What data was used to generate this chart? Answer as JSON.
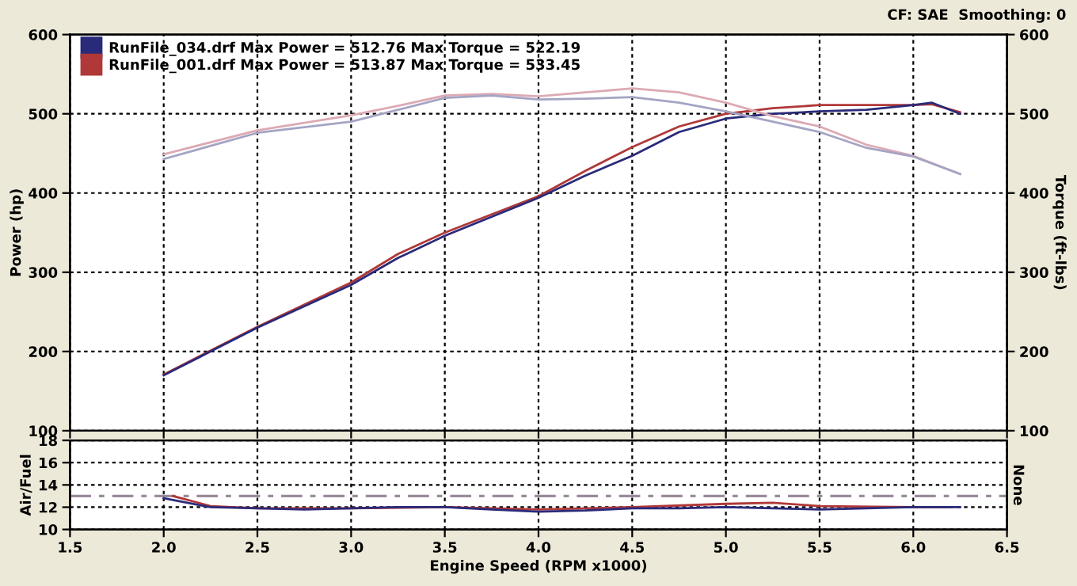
{
  "chart_data": [
    {
      "type": "line",
      "ylabel": "Power (hp)",
      "y2label": "Torque (ft-lbs)",
      "annotations": [
        "CF: SAE  Smoothing: 0"
      ],
      "legend": "top left",
      "grid": true,
      "tick_labels": "y",
      "xlim": [
        1.5,
        6.5
      ],
      "xticks": [
        {
          "value": 1.5,
          "label": null
        },
        {
          "value": 2.0,
          "label": null
        },
        {
          "value": 2.5,
          "label": null
        },
        {
          "value": 3.0,
          "label": null
        },
        {
          "value": 3.5,
          "label": null
        },
        {
          "value": 4.0,
          "label": null
        },
        {
          "value": 4.5,
          "label": null
        },
        {
          "value": 5.0,
          "label": null
        },
        {
          "value": 5.5,
          "label": null
        },
        {
          "value": 6.0,
          "label": null
        },
        {
          "value": 6.5,
          "label": null
        }
      ],
      "ylim": [
        100,
        600
      ],
      "yticks": [
        100,
        200,
        300,
        400,
        500,
        600
      ],
      "y2lim": [
        100,
        600
      ],
      "y2ticks": [
        100,
        200,
        300,
        400,
        500,
        600
      ],
      "series": [
        {
          "name": "RunFile_034.drf Max Power = 512.76 Max Torque = 522.19",
          "color": "#2a2a7a",
          "x": [
            2.0,
            2.25,
            2.5,
            2.75,
            3.0,
            3.25,
            3.5,
            3.75,
            4.0,
            4.25,
            4.5,
            4.75,
            5.0,
            5.25,
            5.5,
            5.75,
            6.0,
            6.1,
            6.25
          ],
          "values": [
            170,
            200,
            230,
            257,
            284,
            318,
            346,
            370,
            394,
            422,
            447,
            477,
            494,
            500,
            503,
            505,
            511,
            514,
            500
          ]
        },
        {
          "name": "RunFile_001.drf Max Power = 513.87 Max Torque = 533.45",
          "color": "#b03838",
          "x": [
            2.0,
            2.25,
            2.5,
            2.75,
            3.0,
            3.25,
            3.5,
            3.75,
            4.0,
            4.25,
            4.5,
            4.75,
            5.0,
            5.25,
            5.5,
            5.75,
            6.0,
            6.1,
            6.25
          ],
          "values": [
            171,
            201,
            231,
            259,
            287,
            323,
            350,
            373,
            396,
            428,
            458,
            484,
            500,
            507,
            511,
            511,
            511,
            512,
            502
          ]
        },
        {
          "color": "#a4a4c4",
          "axis": "y2",
          "x": [
            2.0,
            2.5,
            3.0,
            3.25,
            3.5,
            3.75,
            4.0,
            4.25,
            4.5,
            4.75,
            5.0,
            5.25,
            5.5,
            5.75,
            6.0,
            6.25
          ],
          "values": [
            443,
            476,
            490,
            505,
            520,
            523,
            518,
            519,
            521,
            514,
            503,
            490,
            477,
            457,
            446,
            424
          ]
        },
        {
          "color": "#dcaab4",
          "axis": "y2",
          "x": [
            2.0,
            2.5,
            3.0,
            3.25,
            3.5,
            3.75,
            4.0,
            4.25,
            4.5,
            4.75,
            5.0,
            5.25,
            5.5,
            5.75,
            6.0,
            6.25
          ],
          "values": [
            449,
            479,
            498,
            510,
            523,
            525,
            522,
            527,
            532,
            527,
            514,
            497,
            484,
            461,
            447,
            424
          ]
        }
      ]
    },
    {
      "type": "line",
      "xlabel": "Engine Speed (RPM x1000)",
      "ylabel": "Air/Fuel",
      "y2label": "None",
      "grid": true,
      "xlim": [
        1.5,
        6.5
      ],
      "xticks": [
        1.5,
        {
          "value": 2.0,
          "label": "2.0"
        },
        2.5,
        {
          "value": 3.0,
          "label": "3.0"
        },
        3.5,
        {
          "value": 4.0,
          "label": "4.0"
        },
        4.5,
        {
          "value": 5.0,
          "label": "5.0"
        },
        5.5,
        {
          "value": 6.0,
          "label": "6.0"
        },
        6.5
      ],
      "ylim": [
        10,
        18
      ],
      "yticks": [
        10,
        12,
        14,
        16,
        18
      ],
      "ref_lines": [
        {
          "axis": "y",
          "value": 13,
          "color": "#9a8a9a",
          "line_style": "dashed"
        }
      ],
      "series": [
        {
          "color": "#2a2a7a",
          "x": [
            2.0,
            2.25,
            2.5,
            2.75,
            3.0,
            3.25,
            3.5,
            3.75,
            4.0,
            4.25,
            4.5,
            4.75,
            5.0,
            5.25,
            5.5,
            5.75,
            6.0,
            6.25
          ],
          "values": [
            12.8,
            12.0,
            11.9,
            11.8,
            11.9,
            12.0,
            12.0,
            11.8,
            11.6,
            11.7,
            11.9,
            11.9,
            12.0,
            11.9,
            11.8,
            11.9,
            12.0,
            12.0
          ]
        },
        {
          "color": "#b03838",
          "x": [
            2.05,
            2.25,
            2.5,
            3.0,
            3.5,
            4.0,
            4.5,
            5.0,
            5.25,
            5.5,
            6.0,
            6.2
          ],
          "values": [
            13.0,
            12.1,
            11.9,
            11.9,
            12.0,
            11.8,
            12.0,
            12.3,
            12.4,
            12.1,
            12.0,
            12.0
          ]
        }
      ]
    }
  ]
}
